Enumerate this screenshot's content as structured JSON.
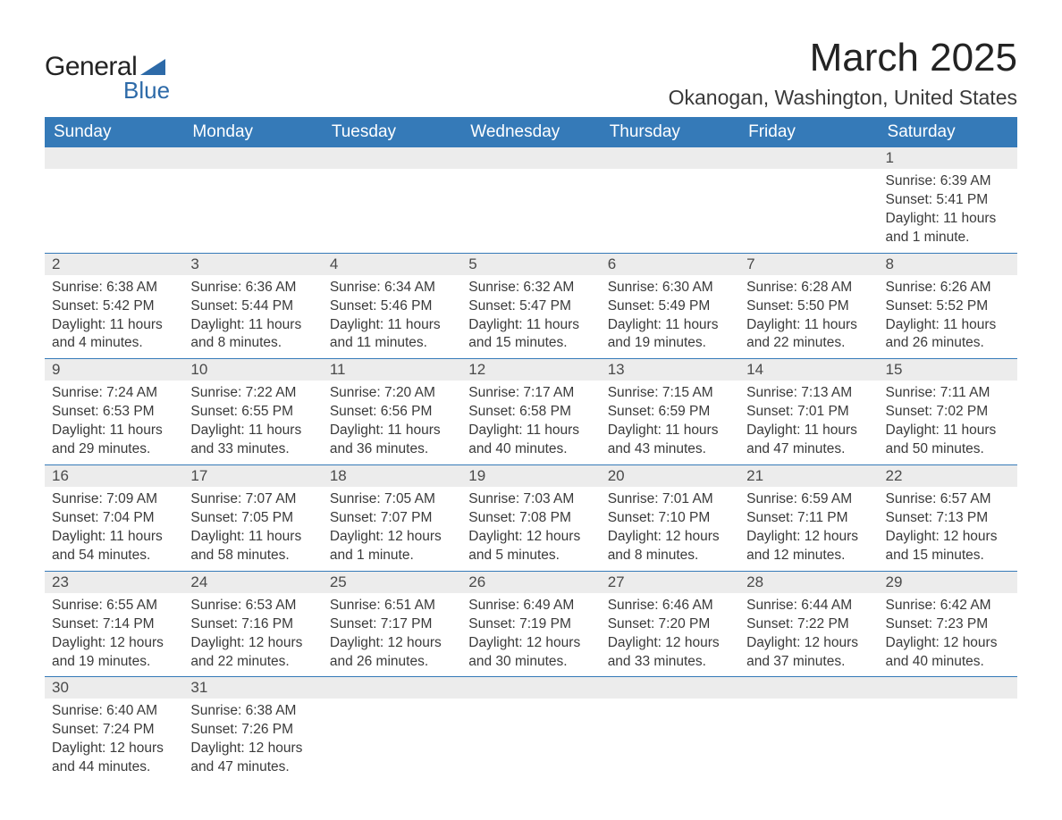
{
  "logo": {
    "text1": "General",
    "text2": "Blue"
  },
  "title": "March 2025",
  "location": "Okanogan, Washington, United States",
  "colors": {
    "header_bg": "#357ab8",
    "header_fg": "#ffffff",
    "daynum_bg": "#ececec",
    "text": "#3a3a3a",
    "page_bg": "#ffffff",
    "border": "#357ab8"
  },
  "weekday_headers": [
    "Sunday",
    "Monday",
    "Tuesday",
    "Wednesday",
    "Thursday",
    "Friday",
    "Saturday"
  ],
  "weeks": [
    [
      null,
      null,
      null,
      null,
      null,
      null,
      {
        "day": "1",
        "sunrise": "Sunrise: 6:39 AM",
        "sunset": "Sunset: 5:41 PM",
        "daylight": "Daylight: 11 hours and 1 minute."
      }
    ],
    [
      {
        "day": "2",
        "sunrise": "Sunrise: 6:38 AM",
        "sunset": "Sunset: 5:42 PM",
        "daylight": "Daylight: 11 hours and 4 minutes."
      },
      {
        "day": "3",
        "sunrise": "Sunrise: 6:36 AM",
        "sunset": "Sunset: 5:44 PM",
        "daylight": "Daylight: 11 hours and 8 minutes."
      },
      {
        "day": "4",
        "sunrise": "Sunrise: 6:34 AM",
        "sunset": "Sunset: 5:46 PM",
        "daylight": "Daylight: 11 hours and 11 minutes."
      },
      {
        "day": "5",
        "sunrise": "Sunrise: 6:32 AM",
        "sunset": "Sunset: 5:47 PM",
        "daylight": "Daylight: 11 hours and 15 minutes."
      },
      {
        "day": "6",
        "sunrise": "Sunrise: 6:30 AM",
        "sunset": "Sunset: 5:49 PM",
        "daylight": "Daylight: 11 hours and 19 minutes."
      },
      {
        "day": "7",
        "sunrise": "Sunrise: 6:28 AM",
        "sunset": "Sunset: 5:50 PM",
        "daylight": "Daylight: 11 hours and 22 minutes."
      },
      {
        "day": "8",
        "sunrise": "Sunrise: 6:26 AM",
        "sunset": "Sunset: 5:52 PM",
        "daylight": "Daylight: 11 hours and 26 minutes."
      }
    ],
    [
      {
        "day": "9",
        "sunrise": "Sunrise: 7:24 AM",
        "sunset": "Sunset: 6:53 PM",
        "daylight": "Daylight: 11 hours and 29 minutes."
      },
      {
        "day": "10",
        "sunrise": "Sunrise: 7:22 AM",
        "sunset": "Sunset: 6:55 PM",
        "daylight": "Daylight: 11 hours and 33 minutes."
      },
      {
        "day": "11",
        "sunrise": "Sunrise: 7:20 AM",
        "sunset": "Sunset: 6:56 PM",
        "daylight": "Daylight: 11 hours and 36 minutes."
      },
      {
        "day": "12",
        "sunrise": "Sunrise: 7:17 AM",
        "sunset": "Sunset: 6:58 PM",
        "daylight": "Daylight: 11 hours and 40 minutes."
      },
      {
        "day": "13",
        "sunrise": "Sunrise: 7:15 AM",
        "sunset": "Sunset: 6:59 PM",
        "daylight": "Daylight: 11 hours and 43 minutes."
      },
      {
        "day": "14",
        "sunrise": "Sunrise: 7:13 AM",
        "sunset": "Sunset: 7:01 PM",
        "daylight": "Daylight: 11 hours and 47 minutes."
      },
      {
        "day": "15",
        "sunrise": "Sunrise: 7:11 AM",
        "sunset": "Sunset: 7:02 PM",
        "daylight": "Daylight: 11 hours and 50 minutes."
      }
    ],
    [
      {
        "day": "16",
        "sunrise": "Sunrise: 7:09 AM",
        "sunset": "Sunset: 7:04 PM",
        "daylight": "Daylight: 11 hours and 54 minutes."
      },
      {
        "day": "17",
        "sunrise": "Sunrise: 7:07 AM",
        "sunset": "Sunset: 7:05 PM",
        "daylight": "Daylight: 11 hours and 58 minutes."
      },
      {
        "day": "18",
        "sunrise": "Sunrise: 7:05 AM",
        "sunset": "Sunset: 7:07 PM",
        "daylight": "Daylight: 12 hours and 1 minute."
      },
      {
        "day": "19",
        "sunrise": "Sunrise: 7:03 AM",
        "sunset": "Sunset: 7:08 PM",
        "daylight": "Daylight: 12 hours and 5 minutes."
      },
      {
        "day": "20",
        "sunrise": "Sunrise: 7:01 AM",
        "sunset": "Sunset: 7:10 PM",
        "daylight": "Daylight: 12 hours and 8 minutes."
      },
      {
        "day": "21",
        "sunrise": "Sunrise: 6:59 AM",
        "sunset": "Sunset: 7:11 PM",
        "daylight": "Daylight: 12 hours and 12 minutes."
      },
      {
        "day": "22",
        "sunrise": "Sunrise: 6:57 AM",
        "sunset": "Sunset: 7:13 PM",
        "daylight": "Daylight: 12 hours and 15 minutes."
      }
    ],
    [
      {
        "day": "23",
        "sunrise": "Sunrise: 6:55 AM",
        "sunset": "Sunset: 7:14 PM",
        "daylight": "Daylight: 12 hours and 19 minutes."
      },
      {
        "day": "24",
        "sunrise": "Sunrise: 6:53 AM",
        "sunset": "Sunset: 7:16 PM",
        "daylight": "Daylight: 12 hours and 22 minutes."
      },
      {
        "day": "25",
        "sunrise": "Sunrise: 6:51 AM",
        "sunset": "Sunset: 7:17 PM",
        "daylight": "Daylight: 12 hours and 26 minutes."
      },
      {
        "day": "26",
        "sunrise": "Sunrise: 6:49 AM",
        "sunset": "Sunset: 7:19 PM",
        "daylight": "Daylight: 12 hours and 30 minutes."
      },
      {
        "day": "27",
        "sunrise": "Sunrise: 6:46 AM",
        "sunset": "Sunset: 7:20 PM",
        "daylight": "Daylight: 12 hours and 33 minutes."
      },
      {
        "day": "28",
        "sunrise": "Sunrise: 6:44 AM",
        "sunset": "Sunset: 7:22 PM",
        "daylight": "Daylight: 12 hours and 37 minutes."
      },
      {
        "day": "29",
        "sunrise": "Sunrise: 6:42 AM",
        "sunset": "Sunset: 7:23 PM",
        "daylight": "Daylight: 12 hours and 40 minutes."
      }
    ],
    [
      {
        "day": "30",
        "sunrise": "Sunrise: 6:40 AM",
        "sunset": "Sunset: 7:24 PM",
        "daylight": "Daylight: 12 hours and 44 minutes."
      },
      {
        "day": "31",
        "sunrise": "Sunrise: 6:38 AM",
        "sunset": "Sunset: 7:26 PM",
        "daylight": "Daylight: 12 hours and 47 minutes."
      },
      null,
      null,
      null,
      null,
      null
    ]
  ]
}
